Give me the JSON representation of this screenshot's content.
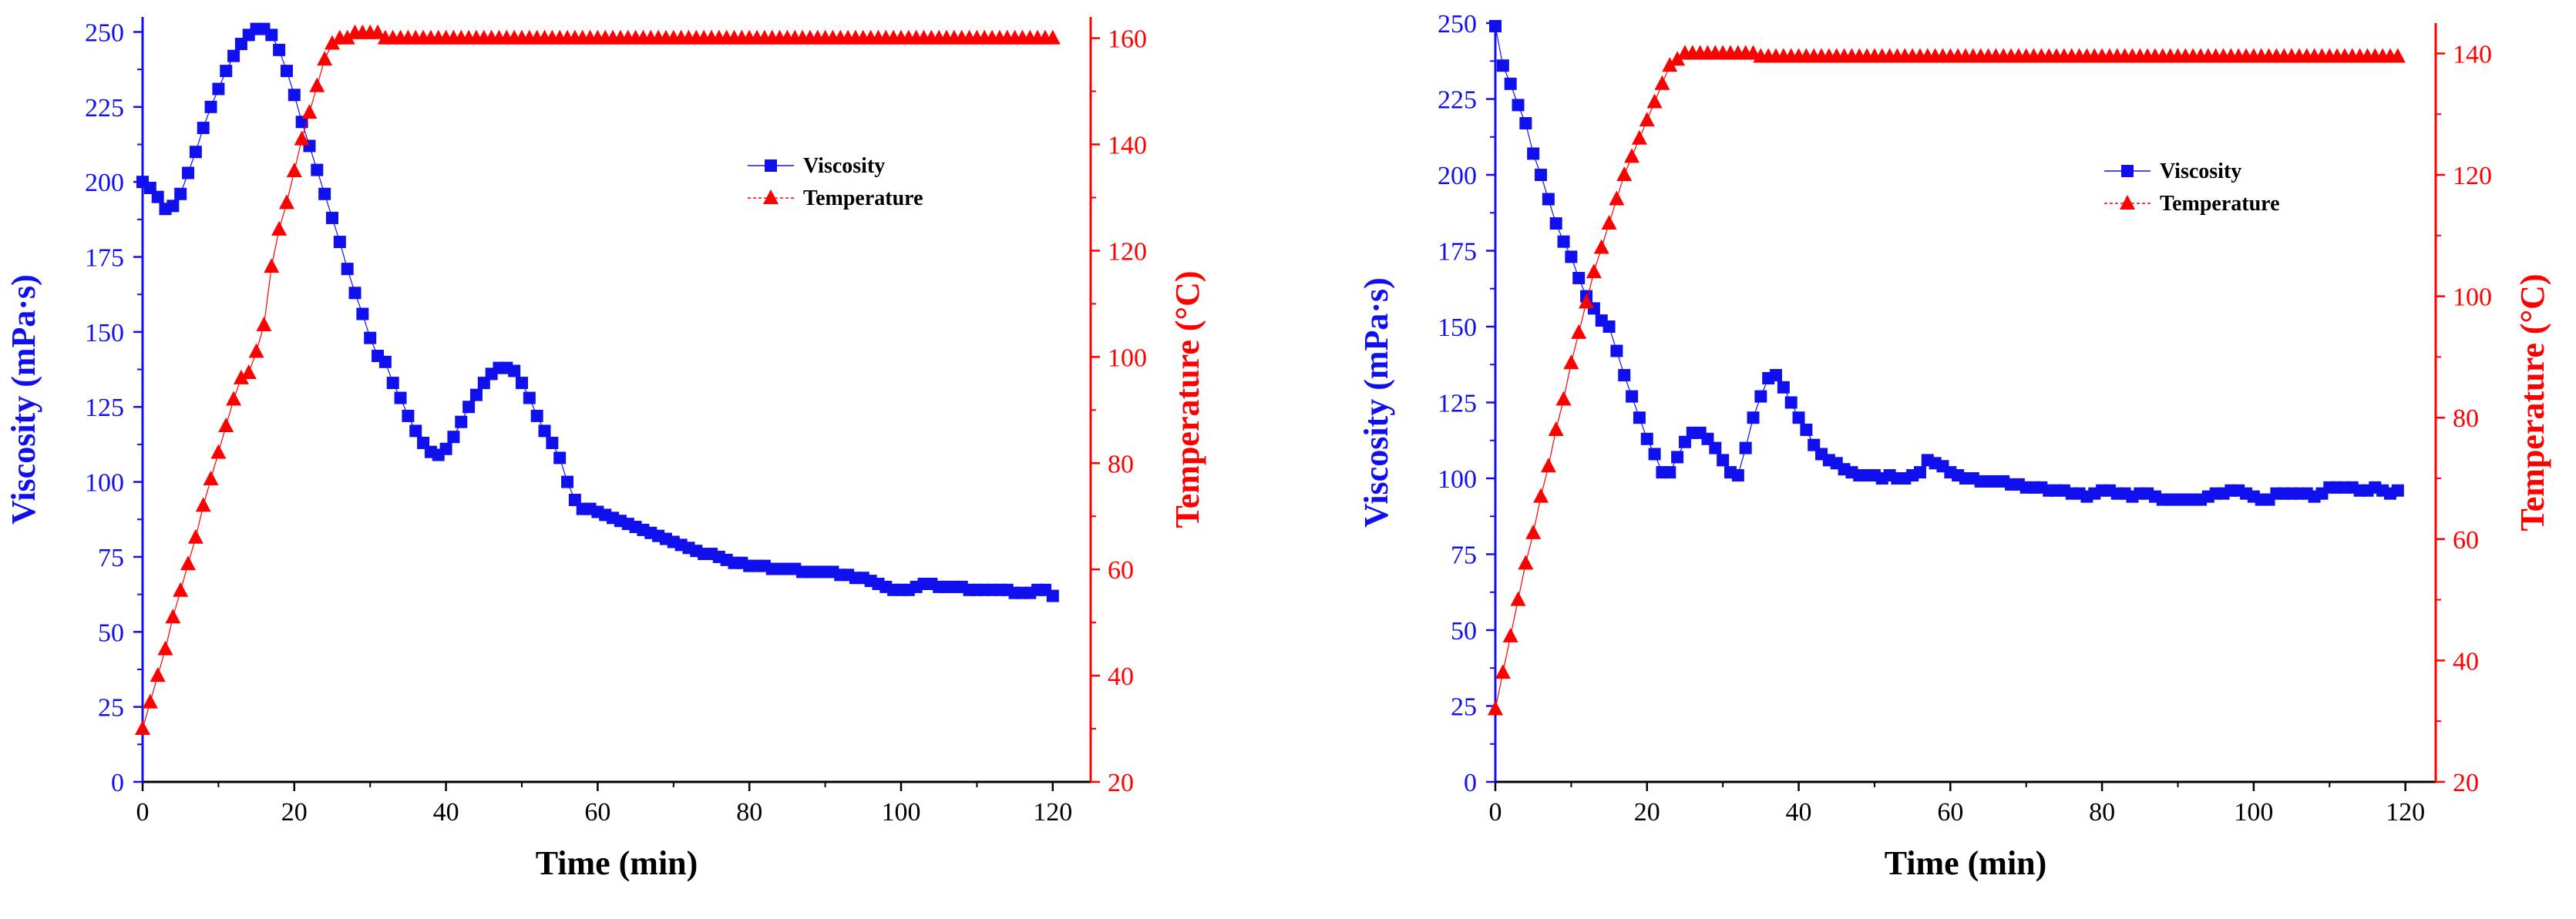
{
  "colors": {
    "viscosity": "#1010ee",
    "temperature": "#ff0000",
    "axis": "#000000"
  },
  "chart_data": [
    {
      "type": "scatter",
      "title": "",
      "xlabel": "Time (min)",
      "ylabel_left": "Viscosity (mPa·s)",
      "ylabel_right": "Temperature (°C)",
      "xlim": [
        0,
        125
      ],
      "ylim_left": [
        0,
        255
      ],
      "ylim_right": [
        20,
        164
      ],
      "xticks": [
        "0",
        "20",
        "40",
        "60",
        "80",
        "100",
        "120"
      ],
      "yticks_left": [
        "0",
        "25",
        "50",
        "75",
        "100",
        "125",
        "150",
        "175",
        "200",
        "225",
        "250"
      ],
      "yticks_right": [
        "20",
        "40",
        "60",
        "80",
        "100",
        "120",
        "140",
        "160"
      ],
      "legend": [
        "Viscosity",
        "Temperature"
      ],
      "legend_position": "top-right",
      "series": [
        {
          "name": "Viscosity",
          "axis": "left",
          "marker": "square",
          "x": [
            0,
            1,
            2,
            3,
            4,
            5,
            6,
            7,
            8,
            9,
            10,
            11,
            12,
            13,
            14,
            15,
            16,
            17,
            18,
            19,
            20,
            21,
            22,
            23,
            24,
            25,
            26,
            27,
            28,
            29,
            30,
            31,
            32,
            33,
            34,
            35,
            36,
            37,
            38,
            39,
            40,
            41,
            42,
            43,
            44,
            45,
            46,
            47,
            48,
            49,
            50,
            51,
            52,
            53,
            54,
            55,
            56,
            57,
            58,
            59,
            60,
            61,
            62,
            63,
            64,
            65,
            66,
            67,
            68,
            69,
            70,
            71,
            72,
            73,
            74,
            75,
            76,
            77,
            78,
            79,
            80,
            81,
            82,
            83,
            84,
            85,
            86,
            87,
            88,
            89,
            90,
            91,
            92,
            93,
            94,
            95,
            96,
            97,
            98,
            99,
            100,
            101,
            102,
            103,
            104,
            105,
            106,
            107,
            108,
            109,
            110,
            111,
            112,
            113,
            114,
            115,
            116,
            117,
            118,
            119,
            120
          ],
          "y": [
            200,
            198,
            195,
            191,
            192,
            196,
            203,
            210,
            218,
            225,
            231,
            237,
            242,
            246,
            249,
            251,
            251,
            249,
            244,
            237,
            229,
            220,
            212,
            204,
            196,
            188,
            180,
            171,
            163,
            156,
            148,
            142,
            140,
            133,
            128,
            122,
            117,
            113,
            110,
            109,
            111,
            115,
            120,
            125,
            129,
            133,
            136,
            138,
            138,
            137,
            133,
            128,
            122,
            117,
            113,
            108,
            100,
            94,
            91,
            91,
            90,
            89,
            88,
            87,
            86,
            85,
            84,
            83,
            82,
            81,
            80,
            79,
            78,
            77,
            76,
            76,
            75,
            74,
            73,
            73,
            72,
            72,
            72,
            71,
            71,
            71,
            71,
            70,
            70,
            70,
            70,
            70,
            69,
            69,
            68,
            68,
            67,
            66,
            65,
            64,
            64,
            64,
            65,
            66,
            66,
            65,
            65,
            65,
            65,
            64,
            64,
            64,
            64,
            64,
            64,
            63,
            63,
            63,
            64,
            64,
            62
          ]
        },
        {
          "name": "Temperature",
          "axis": "right",
          "marker": "triangle",
          "x": [
            0,
            1,
            2,
            3,
            4,
            5,
            6,
            7,
            8,
            9,
            10,
            11,
            12,
            13,
            14,
            15,
            16,
            17,
            18,
            19,
            20,
            21,
            22,
            23,
            24,
            25,
            26,
            27,
            28,
            29,
            30,
            31,
            32,
            33,
            34,
            35,
            36,
            37,
            38,
            39,
            40,
            41,
            42,
            43,
            44,
            45,
            46,
            47,
            48,
            49,
            50,
            51,
            52,
            53,
            54,
            55,
            56,
            57,
            58,
            59,
            60,
            61,
            62,
            63,
            64,
            65,
            66,
            67,
            68,
            69,
            70,
            71,
            72,
            73,
            74,
            75,
            76,
            77,
            78,
            79,
            80,
            81,
            82,
            83,
            84,
            85,
            86,
            87,
            88,
            89,
            90,
            91,
            92,
            93,
            94,
            95,
            96,
            97,
            98,
            99,
            100,
            101,
            102,
            103,
            104,
            105,
            106,
            107,
            108,
            109,
            110,
            111,
            112,
            113,
            114,
            115,
            116,
            117,
            118,
            119,
            120
          ],
          "y": [
            30,
            35,
            40,
            45,
            51,
            56,
            61,
            66,
            72,
            77,
            82,
            87,
            92,
            96,
            97,
            101,
            106,
            117,
            124,
            129,
            135,
            141,
            146,
            151,
            156,
            159,
            160,
            160,
            161,
            161,
            161,
            161,
            160,
            160,
            160,
            160,
            160,
            160,
            160,
            160,
            160,
            160,
            160,
            160,
            160,
            160,
            160,
            160,
            160,
            160,
            160,
            160,
            160,
            160,
            160,
            160,
            160,
            160,
            160,
            160,
            160,
            160,
            160,
            160,
            160,
            160,
            160,
            160,
            160,
            160,
            160,
            160,
            160,
            160,
            160,
            160,
            160,
            160,
            160,
            160,
            160,
            160,
            160,
            160,
            160,
            160,
            160,
            160,
            160,
            160,
            160,
            160,
            160,
            160,
            160,
            160,
            160,
            160,
            160,
            160,
            160,
            160,
            160,
            160,
            160,
            160,
            160,
            160,
            160,
            160,
            160,
            160,
            160,
            160,
            160,
            160,
            160,
            160,
            160,
            160,
            160
          ]
        }
      ]
    },
    {
      "type": "scatter",
      "title": "",
      "xlabel": "Time (min)",
      "ylabel_left": "Viscosity (mPa·s)",
      "ylabel_right": "Temperature (°C)",
      "xlim": [
        0,
        124
      ],
      "ylim_left": [
        0,
        250
      ],
      "ylim_right": [
        20,
        145
      ],
      "xticks": [
        "0",
        "20",
        "40",
        "60",
        "80",
        "100",
        "120"
      ],
      "yticks_left": [
        "0",
        "25",
        "50",
        "75",
        "100",
        "125",
        "150",
        "175",
        "200",
        "225",
        "250"
      ],
      "yticks_right": [
        "20",
        "40",
        "60",
        "80",
        "100",
        "120",
        "140"
      ],
      "legend": [
        "Viscosity",
        "Temperature"
      ],
      "legend_position": "top-right",
      "series": [
        {
          "name": "Viscosity",
          "axis": "left",
          "marker": "square",
          "x": [
            0,
            1,
            2,
            3,
            4,
            5,
            6,
            7,
            8,
            9,
            10,
            11,
            12,
            13,
            14,
            15,
            16,
            17,
            18,
            19,
            20,
            21,
            22,
            23,
            24,
            25,
            26,
            27,
            28,
            29,
            30,
            31,
            32,
            33,
            34,
            35,
            36,
            37,
            38,
            39,
            40,
            41,
            42,
            43,
            44,
            45,
            46,
            47,
            48,
            49,
            50,
            51,
            52,
            53,
            54,
            55,
            56,
            57,
            58,
            59,
            60,
            61,
            62,
            63,
            64,
            65,
            66,
            67,
            68,
            69,
            70,
            71,
            72,
            73,
            74,
            75,
            76,
            77,
            78,
            79,
            80,
            81,
            82,
            83,
            84,
            85,
            86,
            87,
            88,
            89,
            90,
            91,
            92,
            93,
            94,
            95,
            96,
            97,
            98,
            99,
            100,
            101,
            102,
            103,
            104,
            105,
            106,
            107,
            108,
            109,
            110,
            111,
            112,
            113,
            114,
            115,
            116,
            117,
            118,
            119
          ],
          "y": [
            249,
            236,
            230,
            223,
            217,
            207,
            200,
            192,
            184,
            178,
            173,
            166,
            160,
            156,
            152,
            150,
            142,
            134,
            127,
            120,
            113,
            108,
            102,
            102,
            107,
            112,
            115,
            115,
            113,
            110,
            106,
            102,
            101,
            110,
            120,
            127,
            133,
            134,
            130,
            125,
            120,
            116,
            111,
            108,
            106,
            105,
            103,
            102,
            101,
            101,
            101,
            100,
            101,
            100,
            100,
            101,
            102,
            106,
            105,
            104,
            102,
            101,
            100,
            100,
            99,
            99,
            99,
            99,
            98,
            98,
            97,
            97,
            97,
            96,
            96,
            96,
            95,
            95,
            94,
            95,
            96,
            96,
            95,
            95,
            94,
            95,
            95,
            94,
            93,
            93,
            93,
            93,
            93,
            93,
            94,
            95,
            95,
            96,
            96,
            95,
            94,
            93,
            93,
            95,
            95,
            95,
            95,
            95,
            94,
            95,
            97,
            97,
            97,
            97,
            96,
            96,
            97,
            96,
            95,
            96
          ]
        },
        {
          "name": "Temperature",
          "axis": "right",
          "marker": "triangle",
          "x": [
            0,
            1,
            2,
            3,
            4,
            5,
            6,
            7,
            8,
            9,
            10,
            11,
            12,
            13,
            14,
            15,
            16,
            17,
            18,
            19,
            20,
            21,
            22,
            23,
            24,
            25,
            26,
            27,
            28,
            29,
            30,
            31,
            32,
            33,
            34,
            35,
            36,
            37,
            38,
            39,
            40,
            41,
            42,
            43,
            44,
            45,
            46,
            47,
            48,
            49,
            50,
            51,
            52,
            53,
            54,
            55,
            56,
            57,
            58,
            59,
            60,
            61,
            62,
            63,
            64,
            65,
            66,
            67,
            68,
            69,
            70,
            71,
            72,
            73,
            74,
            75,
            76,
            77,
            78,
            79,
            80,
            81,
            82,
            83,
            84,
            85,
            86,
            87,
            88,
            89,
            90,
            91,
            92,
            93,
            94,
            95,
            96,
            97,
            98,
            99,
            100,
            101,
            102,
            103,
            104,
            105,
            106,
            107,
            108,
            109,
            110,
            111,
            112,
            113,
            114,
            115,
            116,
            117,
            118,
            119
          ],
          "y": [
            32,
            38,
            44,
            50,
            56,
            61,
            67,
            72,
            78,
            83,
            89,
            94,
            99,
            104,
            108,
            112,
            116,
            120,
            123,
            126,
            129,
            132,
            135,
            138,
            139,
            140,
            140,
            140,
            140,
            140,
            140,
            140,
            140,
            140,
            140,
            139.5,
            139.5,
            139.5,
            139.5,
            139.5,
            139.5,
            139.5,
            139.5,
            139.5,
            139.5,
            139.5,
            139.5,
            139.5,
            139.5,
            139.5,
            139.5,
            139.5,
            139.5,
            139.5,
            139.5,
            139.5,
            139.5,
            139.5,
            139.5,
            139.5,
            139.5,
            139.5,
            139.5,
            139.5,
            139.5,
            139.5,
            139.5,
            139.5,
            139.5,
            139.5,
            139.5,
            139.5,
            139.5,
            139.5,
            139.5,
            139.5,
            139.5,
            139.5,
            139.5,
            139.5,
            139.5,
            139.5,
            139.5,
            139.5,
            139.5,
            139.5,
            139.5,
            139.5,
            139.5,
            139.5,
            139.5,
            139.5,
            139.5,
            139.5,
            139.5,
            139.5,
            139.5,
            139.5,
            139.5,
            139.5,
            139.5,
            139.5,
            139.5,
            139.5,
            139.5,
            139.5,
            139.5,
            139.5,
            139.5,
            139.5,
            139.5,
            139.5,
            139.5,
            139.5,
            139.5,
            139.5,
            139.5,
            139.5,
            139.5,
            139.5
          ]
        }
      ]
    }
  ]
}
